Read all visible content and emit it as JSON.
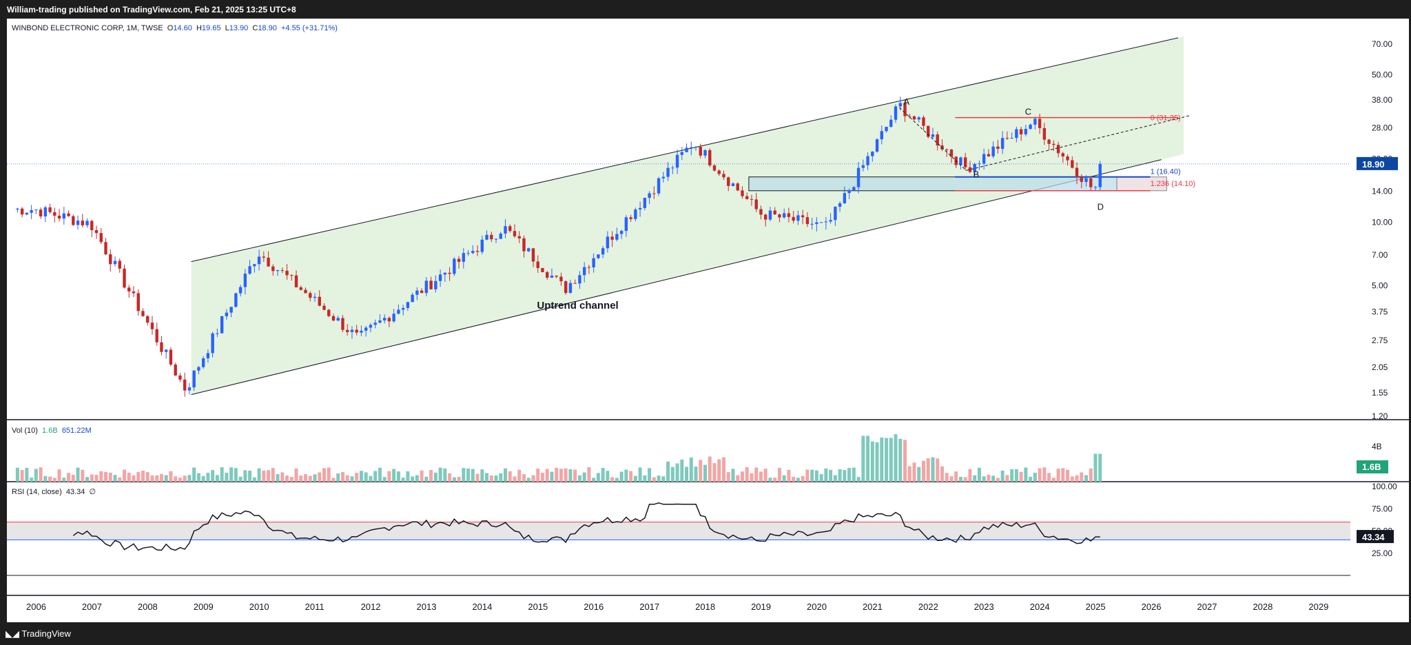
{
  "header": {
    "published": "William-trading published on TradingView.com, Feb 21, 2025 13:25 UTC+8"
  },
  "legend": {
    "symbol": "WINBOND ELECTRONIC CORP, 1M, TWSE",
    "o_label": "O",
    "o": "14.60",
    "h_label": "H",
    "h": "19.65",
    "l_label": "L",
    "l": "13.90",
    "c_label": "C",
    "c": "18.90",
    "change": "+4.55 (+31.71%)"
  },
  "vol_legend": {
    "label": "Vol (10)",
    "v1": "1.6B",
    "v2": "651.22M"
  },
  "rsi_legend": {
    "label": "RSI (14, close)",
    "v": "43.34",
    "extra": "∅"
  },
  "footer": {
    "brand": "TradingView"
  },
  "colors": {
    "up": "#2962ff",
    "down": "#c62828",
    "channel": "#e4f3e0",
    "zone": "#b9dbe8",
    "rsiBand": "#e6e6e6",
    "rsiHigh": "#f23645",
    "rsiLow": "#2962ff"
  },
  "chart_data": {
    "type": "candlestick",
    "title": "WINBOND ELECTRONIC CORP, 1M, TWSE",
    "y_scale": "log",
    "price_ticks": [
      "70.00",
      "50.00",
      "38.00",
      "28.00",
      "20.00",
      "14.00",
      "10.00",
      "7.00",
      "5.00",
      "3.75",
      "2.75",
      "2.05",
      "1.55",
      "1.20"
    ],
    "x_labels": [
      "2006",
      "2007",
      "2008",
      "2009",
      "2010",
      "2011",
      "2012",
      "2013",
      "2014",
      "2015",
      "2016",
      "2017",
      "2018",
      "2019",
      "2020",
      "2021",
      "2022",
      "2023",
      "2024",
      "2025",
      "2026",
      "2027",
      "2028",
      "2029"
    ],
    "last_price": "18.90",
    "annotations": {
      "channel_label": "Uptrend channel",
      "pattern_points": [
        "A",
        "B",
        "C",
        "D"
      ],
      "fib_0": "0 (31.35)",
      "fib_1": "1 (16.40)",
      "fib_1236": "1.236 (14.10)"
    },
    "key_prices": [
      {
        "date": "2006.0",
        "price": 11.5
      },
      {
        "date": "2007.0",
        "price": 9.8
      },
      {
        "date": "2008.7",
        "price": 1.6
      },
      {
        "date": "2010.0",
        "price": 7.2
      },
      {
        "date": "2011.8",
        "price": 2.8
      },
      {
        "date": "2014.4",
        "price": 9.5
      },
      {
        "date": "2015.5",
        "price": 4.8
      },
      {
        "date": "2017.8",
        "price": 24
      },
      {
        "date": "2019.0",
        "price": 11
      },
      {
        "date": "2020.2",
        "price": 9.5
      },
      {
        "date": "2021.5",
        "price": 36
      },
      {
        "date": "2022.7",
        "price": 18
      },
      {
        "date": "2023.9",
        "price": 30
      },
      {
        "date": "2025.0",
        "price": 14.1
      },
      {
        "date": "2025.15",
        "price": 18.9
      }
    ],
    "volume": {
      "ticks": [
        "4B"
      ],
      "last": "1.6B"
    },
    "rsi": {
      "period": 14,
      "last": "43.34",
      "ticks": [
        "100.00",
        "75.00",
        "50.00",
        "25.00"
      ],
      "upper_band": 60,
      "lower_band": 40
    }
  }
}
